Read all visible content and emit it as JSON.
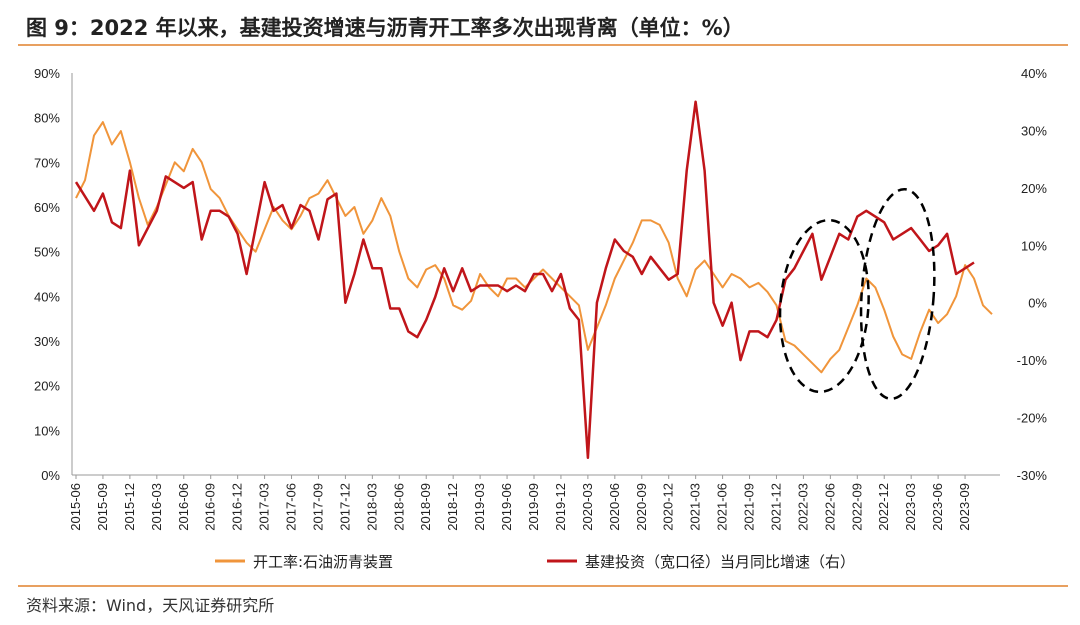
{
  "title": "图 9：2022 年以来，基建投资增速与沥青开工率多次出现背离（单位：%）",
  "source": "资料来源：Wind，天风证券研究所",
  "colors": {
    "asphalt": "#F0953B",
    "infra": "#C0151A",
    "accent_rule": "#E8A060",
    "annotation": "#000000"
  },
  "chart_data": {
    "type": "line",
    "x_labels": [
      "2015-06",
      "2015-09",
      "2015-12",
      "2016-03",
      "2016-06",
      "2016-09",
      "2016-12",
      "2017-03",
      "2017-06",
      "2017-09",
      "2017-12",
      "2018-03",
      "2018-06",
      "2018-09",
      "2018-12",
      "2019-03",
      "2019-06",
      "2019-09",
      "2019-12",
      "2020-03",
      "2020-06",
      "2020-09",
      "2020-12",
      "2021-03",
      "2021-06",
      "2021-09",
      "2021-12",
      "2022-03",
      "2022-06",
      "2022-09",
      "2022-12",
      "2023-03",
      "2023-06",
      "2023-09"
    ],
    "y_left": {
      "ticks": [
        "0%",
        "10%",
        "20%",
        "30%",
        "40%",
        "50%",
        "60%",
        "70%",
        "80%",
        "90%"
      ],
      "range": [
        0,
        90
      ]
    },
    "y_right": {
      "ticks": [
        "-30%",
        "-20%",
        "-10%",
        "0%",
        "10%",
        "20%",
        "30%",
        "40%"
      ],
      "range": [
        -30,
        40
      ]
    },
    "series": [
      {
        "name": "开工率:石油沥青装置",
        "axis": "left",
        "points": [
          [
            "2015-06",
            62
          ],
          [
            "2015-07",
            66
          ],
          [
            "2015-08",
            76
          ],
          [
            "2015-09",
            79
          ],
          [
            "2015-10",
            74
          ],
          [
            "2015-11",
            77
          ],
          [
            "2015-12",
            70
          ],
          [
            "2016-01",
            62
          ],
          [
            "2016-02",
            56
          ],
          [
            "2016-03",
            60
          ],
          [
            "2016-04",
            65
          ],
          [
            "2016-05",
            70
          ],
          [
            "2016-06",
            68
          ],
          [
            "2016-07",
            73
          ],
          [
            "2016-08",
            70
          ],
          [
            "2016-09",
            64
          ],
          [
            "2016-10",
            62
          ],
          [
            "2016-11",
            58
          ],
          [
            "2016-12",
            55
          ],
          [
            "2017-01",
            52
          ],
          [
            "2017-02",
            50
          ],
          [
            "2017-03",
            55
          ],
          [
            "2017-04",
            60
          ],
          [
            "2017-05",
            57
          ],
          [
            "2017-06",
            55
          ],
          [
            "2017-07",
            58
          ],
          [
            "2017-08",
            62
          ],
          [
            "2017-09",
            63
          ],
          [
            "2017-10",
            66
          ],
          [
            "2017-11",
            62
          ],
          [
            "2017-12",
            58
          ],
          [
            "2018-01",
            60
          ],
          [
            "2018-02",
            54
          ],
          [
            "2018-03",
            57
          ],
          [
            "2018-04",
            62
          ],
          [
            "2018-05",
            58
          ],
          [
            "2018-06",
            50
          ],
          [
            "2018-07",
            44
          ],
          [
            "2018-08",
            42
          ],
          [
            "2018-09",
            46
          ],
          [
            "2018-10",
            47
          ],
          [
            "2018-11",
            44
          ],
          [
            "2018-12",
            38
          ],
          [
            "2019-01",
            37
          ],
          [
            "2019-02",
            39
          ],
          [
            "2019-03",
            45
          ],
          [
            "2019-04",
            42
          ],
          [
            "2019-05",
            40
          ],
          [
            "2019-06",
            44
          ],
          [
            "2019-07",
            44
          ],
          [
            "2019-08",
            42
          ],
          [
            "2019-09",
            44
          ],
          [
            "2019-10",
            46
          ],
          [
            "2019-11",
            44
          ],
          [
            "2019-12",
            42
          ],
          [
            "2020-01",
            40
          ],
          [
            "2020-02",
            38
          ],
          [
            "2020-03",
            28
          ],
          [
            "2020-04",
            33
          ],
          [
            "2020-05",
            38
          ],
          [
            "2020-06",
            44
          ],
          [
            "2020-07",
            48
          ],
          [
            "2020-08",
            52
          ],
          [
            "2020-09",
            57
          ],
          [
            "2020-10",
            57
          ],
          [
            "2020-11",
            56
          ],
          [
            "2020-12",
            52
          ],
          [
            "2021-01",
            44
          ],
          [
            "2021-02",
            40
          ],
          [
            "2021-03",
            46
          ],
          [
            "2021-04",
            48
          ],
          [
            "2021-05",
            45
          ],
          [
            "2021-06",
            42
          ],
          [
            "2021-07",
            45
          ],
          [
            "2021-08",
            44
          ],
          [
            "2021-09",
            42
          ],
          [
            "2021-10",
            43
          ],
          [
            "2021-11",
            41
          ],
          [
            "2021-12",
            38
          ],
          [
            "2022-01",
            30
          ],
          [
            "2022-02",
            29
          ],
          [
            "2022-03",
            27
          ],
          [
            "2022-04",
            25
          ],
          [
            "2022-05",
            23
          ],
          [
            "2022-06",
            26
          ],
          [
            "2022-07",
            28
          ],
          [
            "2022-08",
            33
          ],
          [
            "2022-09",
            38
          ],
          [
            "2022-10",
            44
          ],
          [
            "2022-11",
            42
          ],
          [
            "2022-12",
            37
          ],
          [
            "2023-01",
            31
          ],
          [
            "2023-02",
            27
          ],
          [
            "2023-03",
            26
          ],
          [
            "2023-04",
            32
          ],
          [
            "2023-05",
            37
          ],
          [
            "2023-06",
            34
          ],
          [
            "2023-07",
            36
          ],
          [
            "2023-08",
            40
          ],
          [
            "2023-09",
            47
          ],
          [
            "2023-10",
            44
          ],
          [
            "2023-11",
            38
          ],
          [
            "2023-12",
            36
          ]
        ]
      },
      {
        "name": "基建投资（宽口径）当月同比增速（右）",
        "axis": "right",
        "points": [
          [
            "2015-06",
            21
          ],
          [
            "2015-08",
            16
          ],
          [
            "2015-09",
            19
          ],
          [
            "2015-10",
            14
          ],
          [
            "2015-11",
            13
          ],
          [
            "2015-12",
            23
          ],
          [
            "2016-01",
            10
          ],
          [
            "2016-03",
            16
          ],
          [
            "2016-04",
            22
          ],
          [
            "2016-06",
            20
          ],
          [
            "2016-07",
            21
          ],
          [
            "2016-08",
            11
          ],
          [
            "2016-09",
            16
          ],
          [
            "2016-10",
            16
          ],
          [
            "2016-11",
            15
          ],
          [
            "2016-12",
            12
          ],
          [
            "2017-01",
            5
          ],
          [
            "2017-03",
            21
          ],
          [
            "2017-04",
            16
          ],
          [
            "2017-05",
            17
          ],
          [
            "2017-06",
            13
          ],
          [
            "2017-07",
            17
          ],
          [
            "2017-08",
            16
          ],
          [
            "2017-09",
            11
          ],
          [
            "2017-10",
            18
          ],
          [
            "2017-11",
            19
          ],
          [
            "2017-12",
            0
          ],
          [
            "2018-01",
            5
          ],
          [
            "2018-02",
            11
          ],
          [
            "2018-03",
            6
          ],
          [
            "2018-04",
            6
          ],
          [
            "2018-05",
            -1
          ],
          [
            "2018-06",
            -1
          ],
          [
            "2018-07",
            -5
          ],
          [
            "2018-08",
            -6
          ],
          [
            "2018-09",
            -3
          ],
          [
            "2018-10",
            1
          ],
          [
            "2018-11",
            6
          ],
          [
            "2018-12",
            2
          ],
          [
            "2019-01",
            6
          ],
          [
            "2019-02",
            2
          ],
          [
            "2019-03",
            3
          ],
          [
            "2019-04",
            3
          ],
          [
            "2019-05",
            3
          ],
          [
            "2019-06",
            2
          ],
          [
            "2019-07",
            3
          ],
          [
            "2019-08",
            2
          ],
          [
            "2019-09",
            5
          ],
          [
            "2019-10",
            5
          ],
          [
            "2019-11",
            2
          ],
          [
            "2019-12",
            5
          ],
          [
            "2020-01",
            -1
          ],
          [
            "2020-02",
            -3
          ],
          [
            "2020-03",
            -27
          ],
          [
            "2020-04",
            0
          ],
          [
            "2020-05",
            6
          ],
          [
            "2020-06",
            11
          ],
          [
            "2020-07",
            9
          ],
          [
            "2020-08",
            8
          ],
          [
            "2020-09",
            5
          ],
          [
            "2020-10",
            8
          ],
          [
            "2020-11",
            6
          ],
          [
            "2020-12",
            4
          ],
          [
            "2021-01",
            5
          ],
          [
            "2021-02",
            23
          ],
          [
            "2021-03",
            35
          ],
          [
            "2021-04",
            23
          ],
          [
            "2021-05",
            0
          ],
          [
            "2021-06",
            -4
          ],
          [
            "2021-07",
            0
          ],
          [
            "2021-08",
            -10
          ],
          [
            "2021-09",
            -5
          ],
          [
            "2021-10",
            -5
          ],
          [
            "2021-11",
            -6
          ],
          [
            "2021-12",
            -3
          ],
          [
            "2022-01",
            4
          ],
          [
            "2022-02",
            6
          ],
          [
            "2022-03",
            9
          ],
          [
            "2022-04",
            12
          ],
          [
            "2022-05",
            4
          ],
          [
            "2022-06",
            8
          ],
          [
            "2022-07",
            12
          ],
          [
            "2022-08",
            11
          ],
          [
            "2022-09",
            15
          ],
          [
            "2022-10",
            16
          ],
          [
            "2022-11",
            15
          ],
          [
            "2022-12",
            14
          ],
          [
            "2023-01",
            11
          ],
          [
            "2023-02",
            12
          ],
          [
            "2023-03",
            13
          ],
          [
            "2023-04",
            11
          ],
          [
            "2023-05",
            9
          ],
          [
            "2023-06",
            10
          ],
          [
            "2023-07",
            12
          ],
          [
            "2023-08",
            5
          ],
          [
            "2023-09",
            6
          ],
          [
            "2023-10",
            7
          ]
        ]
      }
    ],
    "annotations": [
      "dashed-ellipse 2022-03 ~ 2022-09",
      "dashed-ellipse 2022-12 ~ 2023-03"
    ],
    "legend_position": "bottom",
    "grid": false
  }
}
